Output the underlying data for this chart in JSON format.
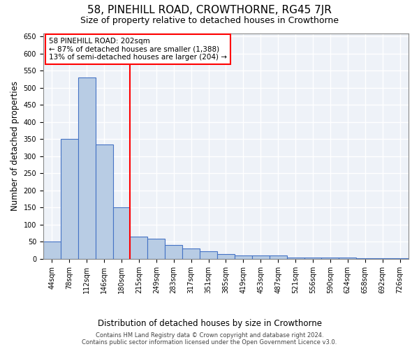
{
  "title": "58, PINEHILL ROAD, CROWTHORNE, RG45 7JR",
  "subtitle": "Size of property relative to detached houses in Crowthorne",
  "xlabel": "Distribution of detached houses by size in Crowthorne",
  "ylabel": "Number of detached properties",
  "categories": [
    "44sqm",
    "78sqm",
    "112sqm",
    "146sqm",
    "180sqm",
    "215sqm",
    "249sqm",
    "283sqm",
    "317sqm",
    "351sqm",
    "385sqm",
    "419sqm",
    "453sqm",
    "487sqm",
    "521sqm",
    "556sqm",
    "590sqm",
    "624sqm",
    "658sqm",
    "692sqm",
    "726sqm"
  ],
  "values": [
    50,
    350,
    530,
    335,
    150,
    65,
    60,
    40,
    30,
    22,
    15,
    10,
    10,
    10,
    3,
    3,
    3,
    3,
    2,
    2,
    2
  ],
  "bar_color": "#b8cce4",
  "bar_edge_color": "#4472c4",
  "red_line_x": 4.5,
  "red_line_label": "58 PINEHILL ROAD: 202sqm",
  "annotation_line1": "← 87% of detached houses are smaller (1,388)",
  "annotation_line2": "13% of semi-detached houses are larger (204) →",
  "annotation_box_color": "white",
  "annotation_box_edge": "red",
  "ylim": [
    0,
    660
  ],
  "yticks": [
    0,
    50,
    100,
    150,
    200,
    250,
    300,
    350,
    400,
    450,
    500,
    550,
    600,
    650
  ],
  "bg_color": "#eef2f8",
  "grid_color": "#ffffff",
  "footer1": "Contains HM Land Registry data © Crown copyright and database right 2024.",
  "footer2": "Contains public sector information licensed under the Open Government Licence v3.0.",
  "title_fontsize": 11,
  "subtitle_fontsize": 9,
  "axis_label_fontsize": 8.5,
  "tick_fontsize": 7,
  "annotation_fontsize": 7.5,
  "footer_fontsize": 6
}
